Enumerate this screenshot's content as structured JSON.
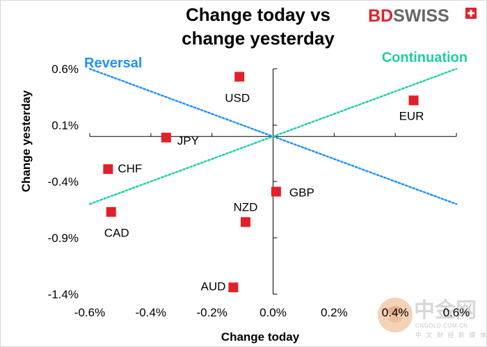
{
  "branding": {
    "bd": "BD",
    "swiss": "SWISS",
    "bd_color": "#e3202a",
    "swiss_color": "#666666"
  },
  "watermark": {
    "name_cn": "中金网",
    "url": "CNGOLD.COM.CN",
    "tagline_cn": "中 文 财 经 新 媒 体"
  },
  "chart_data": {
    "type": "scatter",
    "title_lines": [
      "Change today vs",
      "change yesterday"
    ],
    "xlabel": "Change today",
    "ylabel": "Change yesterday",
    "xlim": [
      -0.6,
      0.6
    ],
    "ylim": [
      -1.4,
      0.6
    ],
    "x_ticks": [
      {
        "value": -0.6,
        "label": "-0.6%"
      },
      {
        "value": -0.4,
        "label": "-0.4%"
      },
      {
        "value": -0.2,
        "label": "-0.2%"
      },
      {
        "value": 0.0,
        "label": "0.0%"
      },
      {
        "value": 0.2,
        "label": "0.2%"
      },
      {
        "value": 0.4,
        "label": "0.4%"
      },
      {
        "value": 0.6,
        "label": "0.6%"
      }
    ],
    "y_ticks": [
      {
        "value": 0.6,
        "label": "0.6%"
      },
      {
        "value": 0.1,
        "label": "0.1%"
      },
      {
        "value": -0.4,
        "label": "-0.4%"
      },
      {
        "value": -0.9,
        "label": "-0.9%"
      },
      {
        "value": -1.4,
        "label": "-1.4%"
      }
    ],
    "marker_color": "#e3202a",
    "points": [
      {
        "name": "USD",
        "x": -0.11,
        "y": 0.53
      },
      {
        "name": "EUR",
        "x": 0.46,
        "y": 0.32
      },
      {
        "name": "JPY",
        "x": -0.35,
        "y": -0.01
      },
      {
        "name": "CHF",
        "x": -0.54,
        "y": -0.29
      },
      {
        "name": "GBP",
        "x": 0.01,
        "y": -0.49
      },
      {
        "name": "NZD",
        "x": -0.09,
        "y": -0.76
      },
      {
        "name": "CAD",
        "x": -0.53,
        "y": -0.67
      },
      {
        "name": "AUD",
        "x": -0.13,
        "y": -1.34
      }
    ],
    "reference_lines": [
      {
        "name": "Reversal",
        "color": "#1e90ff",
        "from": [
          -0.6,
          0.6
        ],
        "to": [
          0.6,
          -0.6
        ]
      },
      {
        "name": "Continuation",
        "color": "#1ecfa0",
        "from": [
          -0.6,
          -0.6
        ],
        "to": [
          0.6,
          0.6
        ]
      }
    ]
  }
}
